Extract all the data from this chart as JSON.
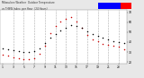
{
  "title": "Milwaukee Weather  Outdoor Temperature",
  "title2": "vs THSW Index  per Hour  (24 Hours)",
  "bg_color": "#e8e8e8",
  "plot_bg": "#ffffff",
  "temp_data": [
    [
      1,
      34
    ],
    [
      2,
      33
    ],
    [
      3,
      32
    ],
    [
      4,
      31
    ],
    [
      5,
      30
    ],
    [
      6,
      30
    ],
    [
      7,
      31
    ],
    [
      8,
      34
    ],
    [
      9,
      39
    ],
    [
      10,
      44
    ],
    [
      11,
      48
    ],
    [
      12,
      52
    ],
    [
      13,
      54
    ],
    [
      14,
      57
    ],
    [
      15,
      56
    ],
    [
      16,
      54
    ],
    [
      17,
      51
    ],
    [
      18,
      48
    ],
    [
      19,
      46
    ],
    [
      20,
      44
    ],
    [
      21,
      43
    ],
    [
      22,
      41
    ],
    [
      23,
      40
    ],
    [
      24,
      39
    ]
  ],
  "thsw_data": [
    [
      1,
      27
    ],
    [
      2,
      26
    ],
    [
      3,
      25
    ],
    [
      4,
      24
    ],
    [
      5,
      23
    ],
    [
      6,
      23
    ],
    [
      7,
      24
    ],
    [
      8,
      28
    ],
    [
      9,
      36
    ],
    [
      10,
      49
    ],
    [
      11,
      56
    ],
    [
      12,
      61
    ],
    [
      13,
      63
    ],
    [
      14,
      65
    ],
    [
      15,
      61
    ],
    [
      16,
      54
    ],
    [
      17,
      47
    ],
    [
      18,
      43
    ],
    [
      19,
      41
    ],
    [
      20,
      38
    ],
    [
      21,
      37
    ],
    [
      22,
      36
    ],
    [
      23,
      35
    ],
    [
      24,
      33
    ]
  ],
  "temp_color": "#000000",
  "thsw_color": "#cc0000",
  "ylim": [
    18,
    72
  ],
  "xlim": [
    0.5,
    24.5
  ],
  "yticks": [
    20,
    30,
    40,
    50,
    60,
    70
  ],
  "ytick_labels": [
    "20",
    "30",
    "40",
    "50",
    "60",
    "70"
  ],
  "xtick_positions": [
    1,
    3,
    5,
    7,
    9,
    11,
    13,
    15,
    17,
    19,
    21,
    23
  ],
  "xtick_labels": [
    "1",
    "3",
    "5",
    "7",
    "9",
    "11",
    "13",
    "15",
    "17",
    "19",
    "21",
    "23"
  ],
  "grid_x_positions": [
    3,
    5,
    7,
    9,
    11,
    13,
    15,
    17,
    19,
    21,
    23
  ],
  "legend_temp_color": "#0000ff",
  "legend_thsw_color": "#ff0000",
  "dot_size": 1.2
}
